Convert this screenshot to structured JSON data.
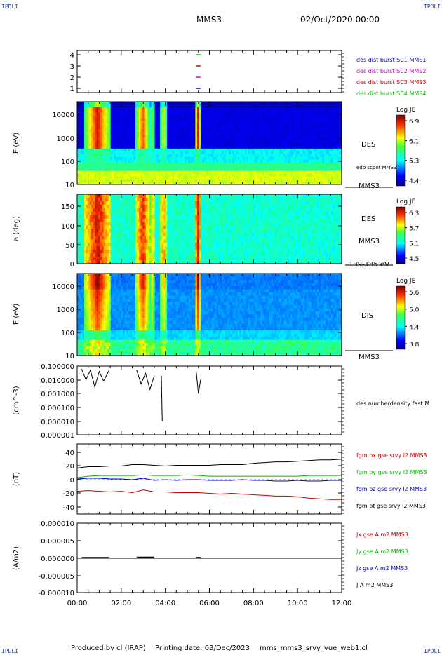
{
  "header": {
    "corner_tl": "IPDLI",
    "corner_tr": "IPDLI",
    "spacecraft": "MMS3",
    "date": "02/Oct/2020 00:00"
  },
  "footer": {
    "produced_by": "Produced by cl (IRAP)",
    "printing_date": "Printing date: 03/Dec/2023",
    "filename": "mms_mms3_srvy_vue_web1.cl",
    "corner_bl": "IPDLI",
    "corner_br": "IPDLI"
  },
  "colors": {
    "sc1": "#0000cc",
    "sc2": "#cc00cc",
    "sc3": "#cc0000",
    "sc4": "#00bb00",
    "bx": "#cc0000",
    "by": "#00bb00",
    "bz": "#0000cc",
    "bt": "#000000"
  },
  "chart_data": [
    {
      "type": "scatter",
      "panel": "burst-availability",
      "yticks": [
        "1",
        "2",
        "3",
        "4"
      ],
      "legend": [
        "des dist burst SC1 MMS1",
        "des dist burst SC2 MMS2",
        "des dist burst SC3 MMS3",
        "des dist burst SC4 MMS4"
      ],
      "markers": [
        {
          "sc": 4,
          "x_hour": 5.5
        },
        {
          "sc": 3,
          "x_hour": 5.5
        },
        {
          "sc": 2,
          "x_hour": 5.5
        },
        {
          "sc": 1,
          "x_hour": 5.5
        }
      ]
    },
    {
      "type": "heatmap",
      "panel": "des-energy-spectrogram",
      "ylabel": "E (eV)",
      "yscale": "log",
      "ylim": [
        10,
        30000
      ],
      "yticks": [
        "10000",
        "1000",
        "100",
        "10"
      ],
      "instrument": "DES",
      "spacecraft_label": "MMS3",
      "overlay_label": "edp scpot MMS3",
      "colorbar": {
        "title": "Log JE",
        "ticks": [
          "6.9",
          "6.1",
          "5.3",
          "4.4"
        ],
        "range": [
          4.4,
          7.0
        ]
      }
    },
    {
      "type": "heatmap",
      "panel": "des-pitch-angle",
      "ylabel": "a (deg)",
      "ylim": [
        0,
        180
      ],
      "yticks": [
        "150",
        "100",
        "50",
        "0"
      ],
      "instrument": "DES",
      "spacecraft_label": "MMS3",
      "energy_range": "139-185 eV",
      "colorbar": {
        "title": "Log JE",
        "ticks": [
          "6.3",
          "5.7",
          "5.1",
          "4.5"
        ],
        "range": [
          4.5,
          6.4
        ]
      }
    },
    {
      "type": "heatmap",
      "panel": "dis-energy-spectrogram",
      "ylabel": "E (eV)",
      "yscale": "log",
      "ylim": [
        10,
        30000
      ],
      "yticks": [
        "10000",
        "1000",
        "100",
        "10"
      ],
      "instrument": "DIS",
      "spacecraft_label": "MMS3",
      "colorbar": {
        "title": "Log JE",
        "ticks": [
          "5.6",
          "5.0",
          "4.4",
          "3.8"
        ],
        "range": [
          3.8,
          5.7
        ]
      }
    },
    {
      "type": "line",
      "panel": "number-density",
      "ylabel": "(cm^-3)",
      "yscale": "log",
      "ylim": [
        1e-06,
        0.1
      ],
      "yticks": [
        "0.100000",
        "0.010000",
        "0.001000",
        "0.000100",
        "0.000010",
        "0.000001"
      ],
      "legend": [
        "des numberdensity fast M"
      ],
      "series": [
        {
          "name": "des numberdensity fast M",
          "segments": [
            {
              "x": [
                0.2,
                0.4,
                0.6,
                0.8,
                1.0,
                1.2,
                1.45
              ],
              "y": [
                0.06,
                0.01,
                0.05,
                0.003,
                0.04,
                0.008,
                0.05
              ]
            },
            {
              "x": [
                2.7,
                2.9,
                3.1,
                3.3,
                3.5
              ],
              "y": [
                0.05,
                0.005,
                0.03,
                0.002,
                0.02
              ]
            },
            {
              "x": [
                3.82,
                3.86
              ],
              "y": [
                0.02,
                1e-05
              ]
            },
            {
              "x": [
                5.4,
                5.5,
                5.6
              ],
              "y": [
                0.04,
                0.001,
                0.01
              ]
            }
          ]
        }
      ]
    },
    {
      "type": "line",
      "panel": "magnetic-field",
      "ylabel": "(nT)",
      "ylim": [
        -48,
        48
      ],
      "yticks": [
        "40",
        "20",
        "0",
        "-20",
        "-40"
      ],
      "legend": [
        "fgm bx gse srvy l2 MMS3",
        "fgm by gse srvy l2 MMS3",
        "fgm bz gse srvy l2 MMS3",
        "fgm bt gse srvy l2 MMS3"
      ],
      "x_hours": [
        0,
        0.5,
        1,
        1.5,
        2,
        2.5,
        3,
        3.5,
        4,
        4.5,
        5,
        5.5,
        6,
        6.5,
        7,
        7.5,
        8,
        8.5,
        9,
        9.5,
        10,
        10.5,
        11,
        11.5,
        12
      ],
      "series": [
        {
          "name": "fgm bx gse srvy l2 MMS3",
          "values": [
            -17,
            -16,
            -17,
            -18,
            -17,
            -19,
            -15,
            -18,
            -18,
            -19,
            -19,
            -19,
            -20,
            -21,
            -20,
            -21,
            -22,
            -23,
            -24,
            -24,
            -25,
            -27,
            -28,
            -29,
            -29
          ]
        },
        {
          "name": "fgm by gse srvy l2 MMS3",
          "values": [
            3,
            5,
            6,
            6,
            6,
            6,
            7,
            6,
            6,
            6,
            7,
            6,
            5,
            5,
            5,
            5,
            5,
            5,
            5,
            5,
            5,
            6,
            6,
            6,
            6
          ]
        },
        {
          "name": "fgm bz gse srvy l2 MMS3",
          "values": [
            1,
            2,
            2,
            1,
            1,
            0,
            2,
            -1,
            0,
            -1,
            0,
            0,
            -1,
            -1,
            -1,
            0,
            -1,
            -1,
            -2,
            -2,
            -1,
            -2,
            -2,
            -1,
            -1
          ]
        },
        {
          "name": "fgm bt gse srvy l2 MMS3",
          "values": [
            17,
            19,
            19,
            20,
            20,
            22,
            22,
            21,
            20,
            21,
            21,
            21,
            21,
            22,
            22,
            22,
            24,
            25,
            26,
            26,
            27,
            28,
            29,
            29,
            30
          ]
        }
      ]
    },
    {
      "type": "line",
      "panel": "current-density",
      "ylabel": "(A/m2)",
      "ylim": [
        -0.0001,
        0.0001
      ],
      "yticks": [
        "0.000010",
        "0.000005",
        "0.000000",
        "-0.000005",
        "-0.000010"
      ],
      "xlabel": "",
      "xticks": [
        "00:00",
        "02:00",
        "04:00",
        "06:00",
        "08:00",
        "10:00",
        "12:00"
      ],
      "xlim": [
        0,
        12
      ],
      "legend": [
        "Jx gse A m2 MMS3",
        "Jy gse A m2 MMS3",
        "Jz gse A m2 MMS3",
        "J A m2 MMS3"
      ],
      "series": [
        {
          "name": "J A m2 MMS3",
          "segments": [
            {
              "x": [
                0.2,
                1.45
              ],
              "y": [
                2e-07,
                2e-07
              ]
            },
            {
              "x": [
                2.7,
                3.5
              ],
              "y": [
                3e-07,
                3e-07
              ]
            },
            {
              "x": [
                5.4,
                5.6
              ],
              "y": [
                2e-07,
                2e-07
              ]
            }
          ]
        }
      ]
    }
  ]
}
